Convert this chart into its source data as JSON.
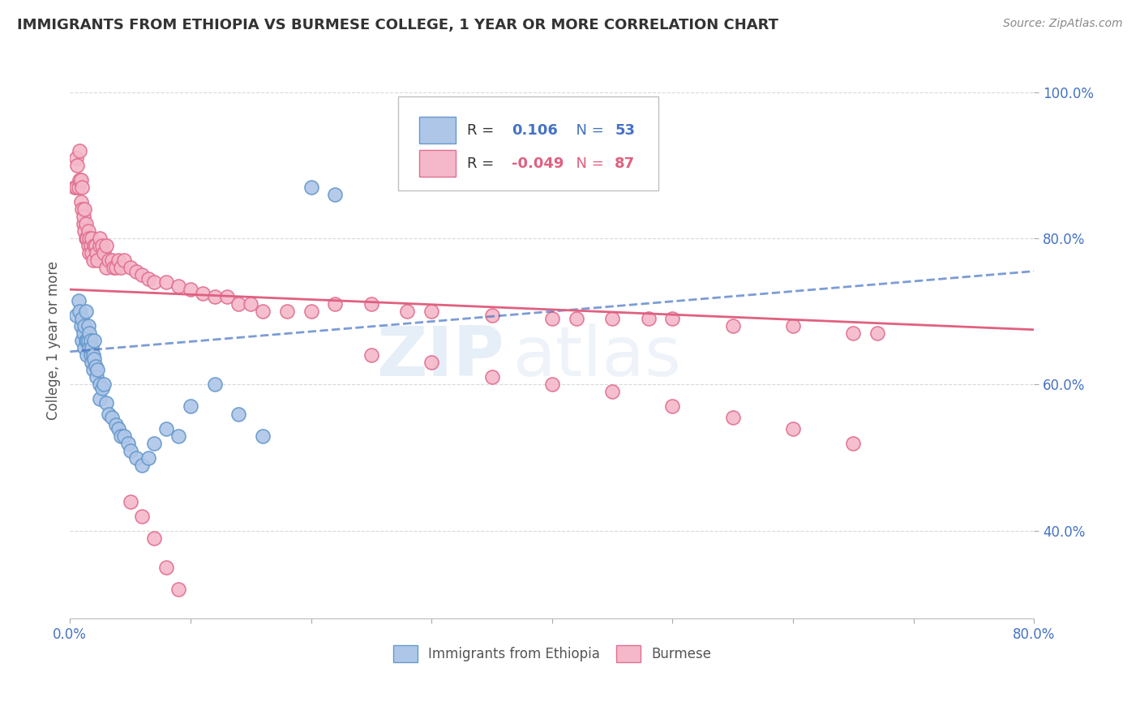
{
  "title": "IMMIGRANTS FROM ETHIOPIA VS BURMESE COLLEGE, 1 YEAR OR MORE CORRELATION CHART",
  "source_text": "Source: ZipAtlas.com",
  "ylabel": "College, 1 year or more",
  "xlim": [
    0.0,
    0.8
  ],
  "ylim": [
    0.28,
    1.04
  ],
  "series1_color": "#aec6e8",
  "series1_edge": "#6699cc",
  "series2_color": "#f5b8ca",
  "series2_edge": "#e07090",
  "trendline1_color": "#4472c4",
  "trendline2_color": "#e06080",
  "watermark_zip": "ZIP",
  "watermark_atlas": "atlas",
  "trendline1_x0": 0.0,
  "trendline1_y0": 0.645,
  "trendline1_x1": 0.8,
  "trendline1_y1": 0.755,
  "trendline2_x0": 0.0,
  "trendline2_y0": 0.73,
  "trendline2_x1": 0.8,
  "trendline2_y1": 0.675,
  "series1_x": [
    0.005,
    0.007,
    0.008,
    0.009,
    0.01,
    0.01,
    0.011,
    0.012,
    0.012,
    0.013,
    0.013,
    0.014,
    0.014,
    0.015,
    0.015,
    0.016,
    0.016,
    0.017,
    0.017,
    0.018,
    0.018,
    0.019,
    0.019,
    0.02,
    0.02,
    0.021,
    0.022,
    0.023,
    0.025,
    0.025,
    0.027,
    0.028,
    0.03,
    0.032,
    0.035,
    0.038,
    0.04,
    0.042,
    0.045,
    0.048,
    0.05,
    0.055,
    0.06,
    0.065,
    0.07,
    0.08,
    0.09,
    0.1,
    0.12,
    0.14,
    0.16,
    0.2,
    0.22
  ],
  "series1_y": [
    0.695,
    0.715,
    0.7,
    0.68,
    0.69,
    0.66,
    0.67,
    0.68,
    0.65,
    0.7,
    0.66,
    0.66,
    0.64,
    0.68,
    0.66,
    0.67,
    0.65,
    0.64,
    0.66,
    0.65,
    0.63,
    0.64,
    0.62,
    0.66,
    0.635,
    0.625,
    0.61,
    0.62,
    0.6,
    0.58,
    0.595,
    0.6,
    0.575,
    0.56,
    0.555,
    0.545,
    0.54,
    0.53,
    0.53,
    0.52,
    0.51,
    0.5,
    0.49,
    0.5,
    0.52,
    0.54,
    0.53,
    0.57,
    0.6,
    0.56,
    0.53,
    0.87,
    0.86
  ],
  "series2_x": [
    0.004,
    0.005,
    0.005,
    0.006,
    0.007,
    0.008,
    0.008,
    0.009,
    0.009,
    0.01,
    0.01,
    0.011,
    0.011,
    0.012,
    0.012,
    0.013,
    0.013,
    0.014,
    0.015,
    0.015,
    0.016,
    0.016,
    0.017,
    0.018,
    0.018,
    0.019,
    0.02,
    0.021,
    0.022,
    0.023,
    0.025,
    0.025,
    0.027,
    0.028,
    0.03,
    0.03,
    0.032,
    0.035,
    0.036,
    0.038,
    0.04,
    0.042,
    0.045,
    0.05,
    0.055,
    0.06,
    0.065,
    0.07,
    0.08,
    0.09,
    0.1,
    0.11,
    0.12,
    0.13,
    0.14,
    0.15,
    0.16,
    0.18,
    0.2,
    0.22,
    0.25,
    0.28,
    0.3,
    0.35,
    0.4,
    0.42,
    0.45,
    0.48,
    0.5,
    0.55,
    0.6,
    0.65,
    0.67,
    0.25,
    0.3,
    0.35,
    0.4,
    0.45,
    0.5,
    0.55,
    0.6,
    0.65,
    0.05,
    0.06,
    0.07,
    0.08,
    0.09
  ],
  "series2_y": [
    0.87,
    0.91,
    0.87,
    0.9,
    0.87,
    0.92,
    0.88,
    0.88,
    0.85,
    0.84,
    0.87,
    0.82,
    0.83,
    0.84,
    0.81,
    0.8,
    0.82,
    0.8,
    0.81,
    0.79,
    0.8,
    0.78,
    0.79,
    0.78,
    0.8,
    0.77,
    0.79,
    0.79,
    0.78,
    0.77,
    0.79,
    0.8,
    0.79,
    0.78,
    0.79,
    0.76,
    0.77,
    0.77,
    0.76,
    0.76,
    0.77,
    0.76,
    0.77,
    0.76,
    0.755,
    0.75,
    0.745,
    0.74,
    0.74,
    0.735,
    0.73,
    0.725,
    0.72,
    0.72,
    0.71,
    0.71,
    0.7,
    0.7,
    0.7,
    0.71,
    0.71,
    0.7,
    0.7,
    0.695,
    0.69,
    0.69,
    0.69,
    0.69,
    0.69,
    0.68,
    0.68,
    0.67,
    0.67,
    0.64,
    0.63,
    0.61,
    0.6,
    0.59,
    0.57,
    0.555,
    0.54,
    0.52,
    0.44,
    0.42,
    0.39,
    0.35,
    0.32
  ]
}
